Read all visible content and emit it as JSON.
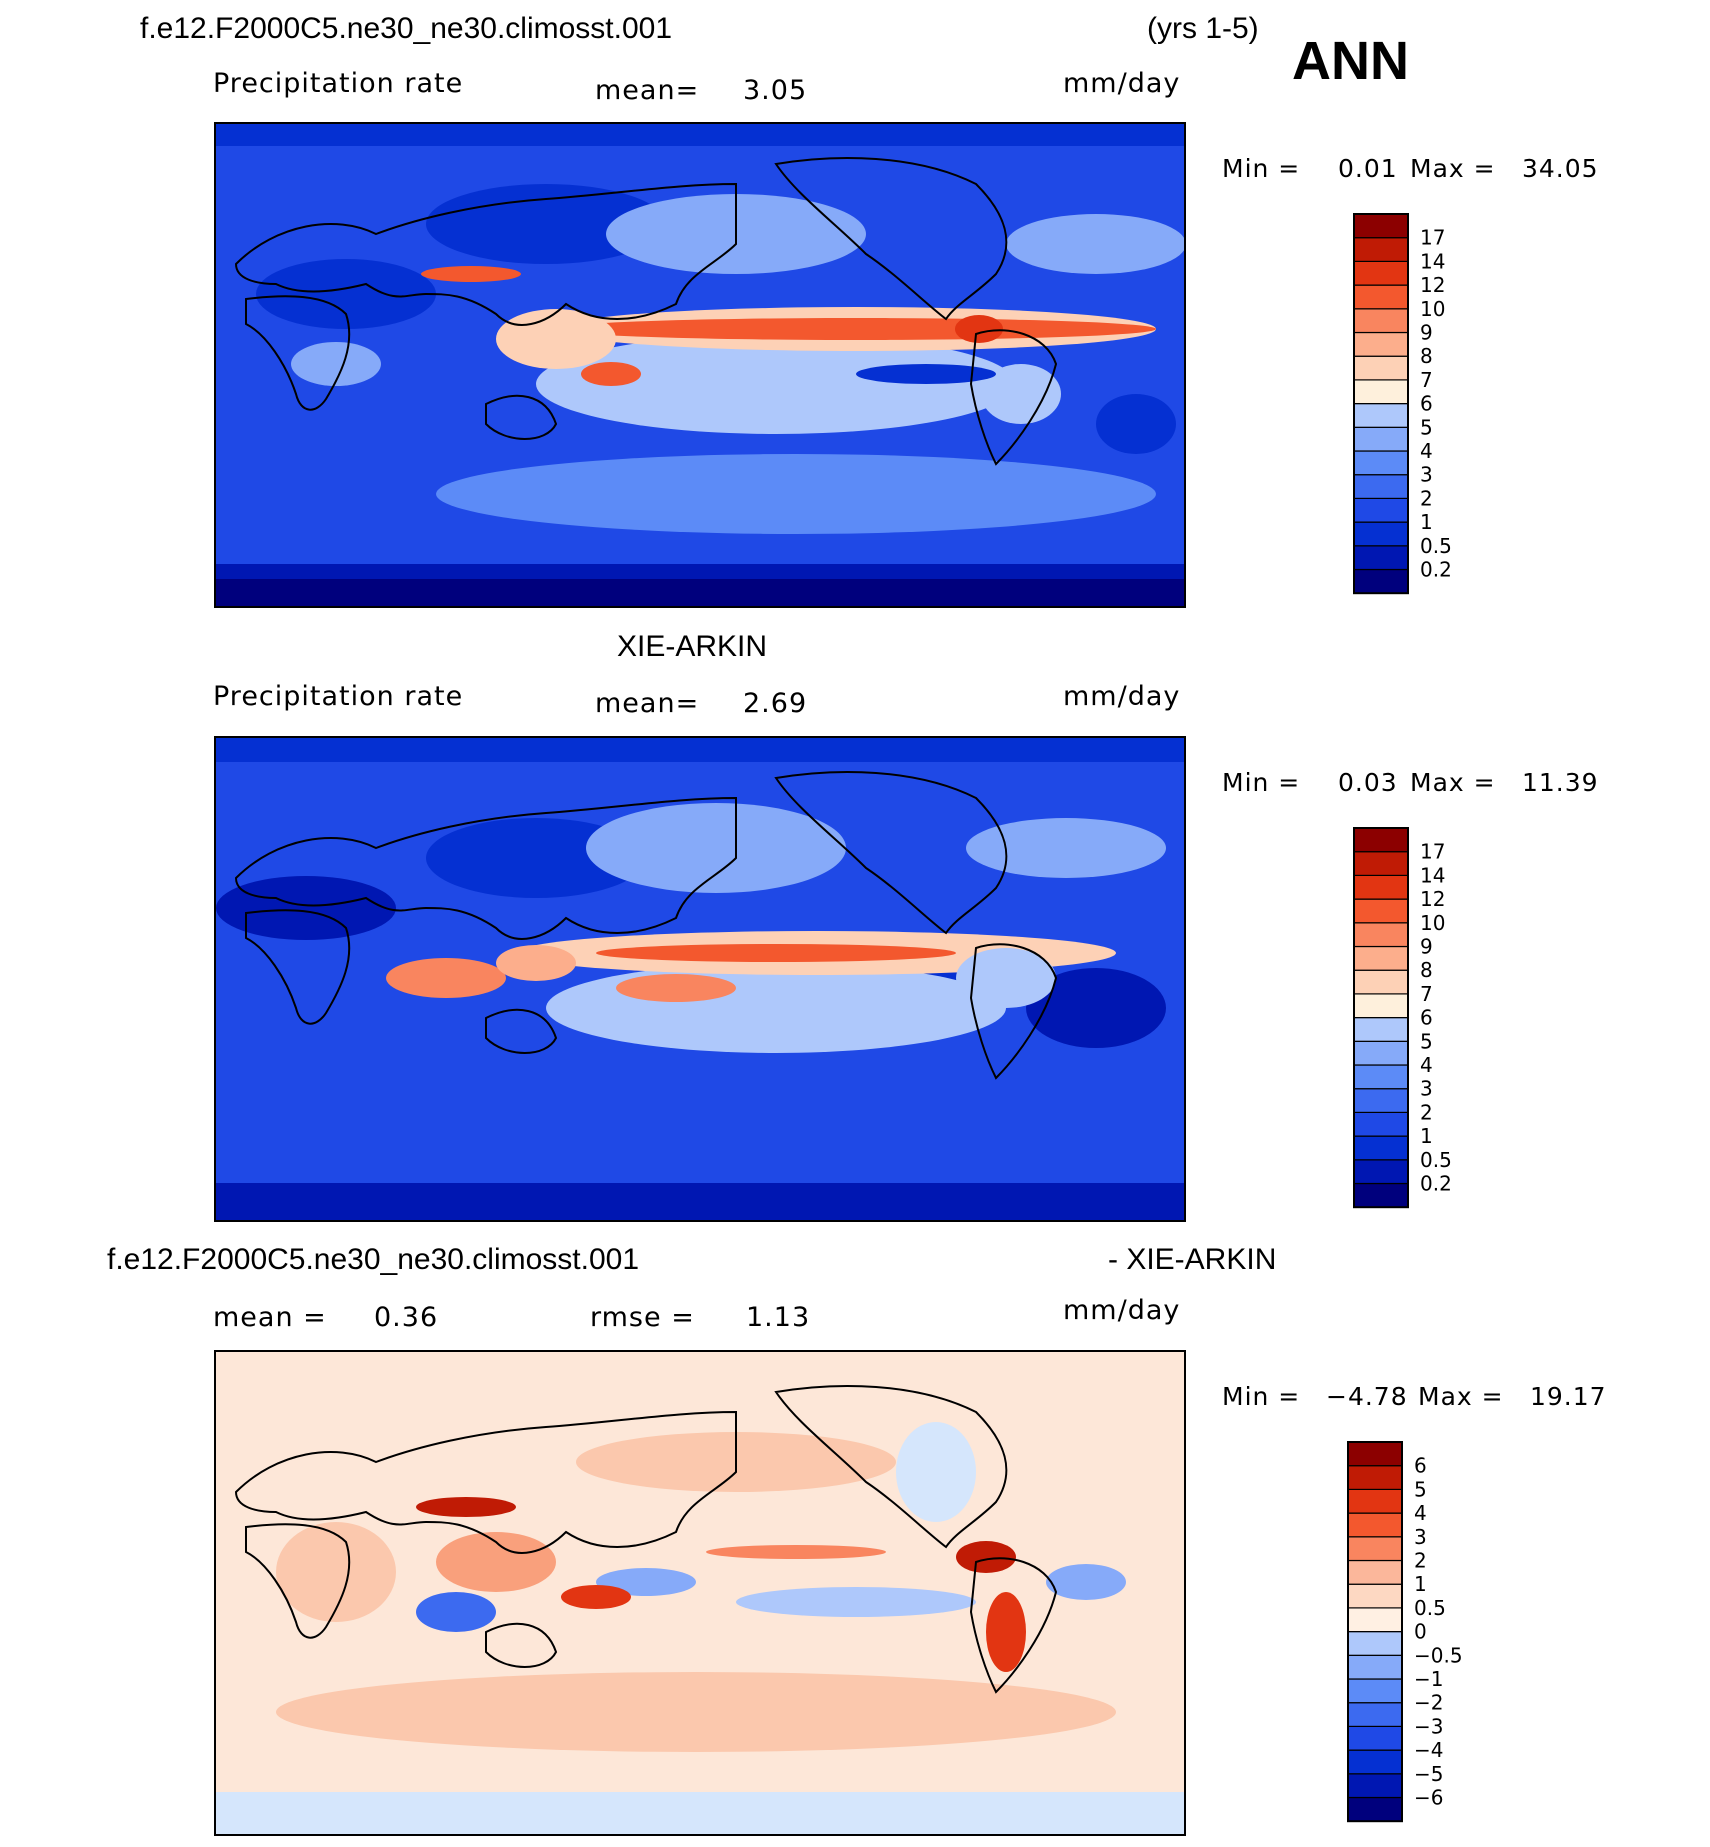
{
  "header": {
    "case_name": "f.e12.F2000C5.ne30_ne30.climosst.001",
    "years": "(yrs 1-5)",
    "season": "ANN"
  },
  "panel_1": {
    "variable": "Precipitation rate",
    "mean_label": "mean=",
    "mean_value": "3.05",
    "units": "mm/day",
    "min_label": "Min =",
    "min_value": "0.01",
    "max_label": "Max =",
    "max_value": "34.05"
  },
  "panel_2": {
    "title": "XIE-ARKIN",
    "variable": "Precipitation rate",
    "mean_label": "mean=",
    "mean_value": "2.69",
    "units": "mm/day",
    "min_label": "Min =",
    "min_value": "0.03",
    "max_label": "Max =",
    "max_value": "11.39"
  },
  "panel_3": {
    "title_left": "f.e12.F2000C5.ne30_ne30.climosst.001",
    "title_right": "- XIE-ARKIN",
    "mean_label": "mean =",
    "mean_value": "0.36",
    "rmse_label": "rmse =",
    "rmse_value": "1.13",
    "units": "mm/day",
    "min_label": "Min =",
    "min_value": "−4.78",
    "max_label": "Max =",
    "max_value": "19.17"
  },
  "colors": {
    "precip_scale": [
      "#00007d",
      "#0017b2",
      "#0530d2",
      "#1f49e6",
      "#3c6af0",
      "#5c8bf7",
      "#86aaf9",
      "#aec8fb",
      "#d5e6fc",
      "#fef0dc",
      "#fdd1b6",
      "#fcae8c",
      "#f9855f",
      "#f3582e",
      "#e23512",
      "#c01b05",
      "#8c0000"
    ],
    "diff_scale": [
      "#00007d",
      "#0017b2",
      "#0530d2",
      "#1f49e6",
      "#3c6af0",
      "#5c8bf7",
      "#86aaf9",
      "#aec8fb",
      "#d5e6fc",
      "#fff0e3",
      "#fdd8c2",
      "#fbb79b",
      "#f9855f",
      "#f3582e",
      "#e23512",
      "#c01b05",
      "#8c0000"
    ],
    "map_ocean_base": "#1f49e6",
    "diff_ocean_base": "#fbe2d0"
  },
  "chart_data": [
    {
      "type": "heatmap",
      "title": "f.e12.F2000C5.ne30_ne30.climosst.001",
      "variable": "Precipitation rate",
      "units": "mm/day",
      "mean": 3.05,
      "min": 0.01,
      "max": 34.05,
      "colorbar_levels": [
        "0.2",
        "0.5",
        "1",
        "2",
        "3",
        "4",
        "5",
        "6",
        "7",
        "8",
        "9",
        "10",
        "12",
        "14",
        "17"
      ],
      "grid": false
    },
    {
      "type": "heatmap",
      "title": "XIE-ARKIN",
      "variable": "Precipitation rate",
      "units": "mm/day",
      "mean": 2.69,
      "min": 0.03,
      "max": 11.39,
      "colorbar_levels": [
        "0.2",
        "0.5",
        "1",
        "2",
        "3",
        "4",
        "5",
        "6",
        "7",
        "8",
        "9",
        "10",
        "12",
        "14",
        "17"
      ],
      "grid": false
    },
    {
      "type": "heatmap",
      "title": "f.e12.F2000C5.ne30_ne30.climosst.001 - XIE-ARKIN",
      "units": "mm/day",
      "mean": 0.36,
      "rmse": 1.13,
      "min": -4.78,
      "max": 19.17,
      "colorbar_levels": [
        "−6",
        "−5",
        "−4",
        "−3",
        "−2",
        "−1",
        "−0.5",
        "0",
        "0.5",
        "1",
        "2",
        "3",
        "4",
        "5",
        "6"
      ],
      "grid": false
    }
  ]
}
